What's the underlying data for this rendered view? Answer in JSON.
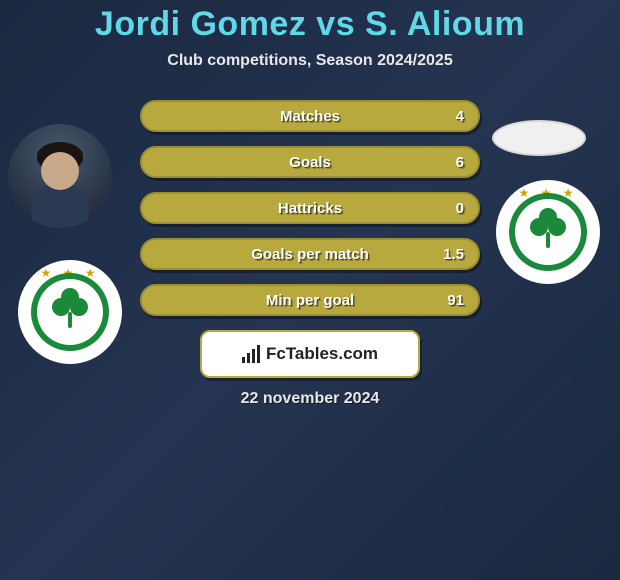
{
  "header": {
    "title": "Jordi Gomez vs S. Alioum",
    "subtitle": "Club competitions, Season 2024/2025",
    "title_color": "#5fd8e8",
    "subtitle_color": "#e8e8e8"
  },
  "stats": [
    {
      "label": "Matches",
      "value": "4"
    },
    {
      "label": "Goals",
      "value": "6"
    },
    {
      "label": "Hattricks",
      "value": "0"
    },
    {
      "label": "Goals per match",
      "value": "1.5"
    },
    {
      "label": "Min per goal",
      "value": "91"
    }
  ],
  "stat_bar": {
    "bg_color": "#b8a93e",
    "border_color": "#9c8f30",
    "text_color": "#ffffff"
  },
  "brand": {
    "text": "FcTables.com"
  },
  "date": "22 november 2024",
  "club_badge": {
    "ring_color": "#1a8a3a",
    "inner_color": "#ffffff",
    "star_color": "#d4a300"
  },
  "background": {
    "gradient_from": "#1a2840",
    "gradient_mid": "#253450",
    "gradient_to": "#1a2840"
  }
}
